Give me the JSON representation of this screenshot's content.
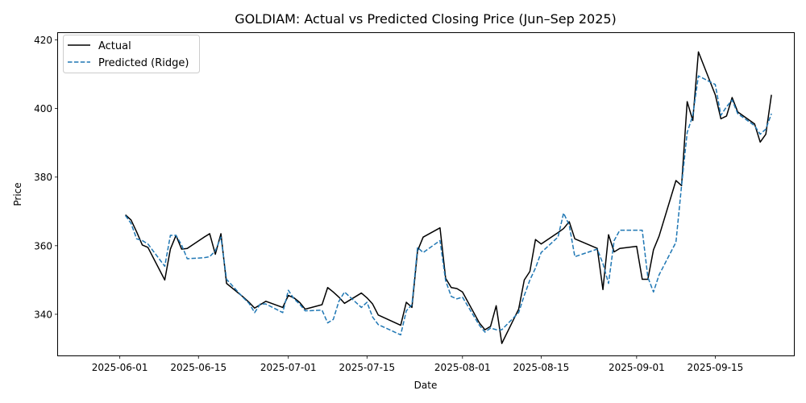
{
  "chart_data": {
    "type": "line",
    "title": "GOLDIAM: Actual vs Predicted Closing Price (Jun–Sep 2025)",
    "xlabel": "Date",
    "ylabel": "Price",
    "xlim": [
      "2025-05-21",
      "2025-09-29"
    ],
    "ylim": [
      328,
      422
    ],
    "x_ticks": [
      "2025-06-01",
      "2025-06-15",
      "2025-07-01",
      "2025-07-15",
      "2025-08-01",
      "2025-08-15",
      "2025-09-01",
      "2025-09-15"
    ],
    "y_ticks": [
      340,
      360,
      380,
      400,
      420
    ],
    "grid": false,
    "legend_position": "top-left",
    "series": [
      {
        "name": "Actual",
        "color": "#000000",
        "dash": "solid",
        "points": [
          [
            "2025-06-02",
            369.0
          ],
          [
            "2025-06-03",
            367.5
          ],
          [
            "2025-06-04",
            364.0
          ],
          [
            "2025-06-05",
            360.2
          ],
          [
            "2025-06-06",
            359.5
          ],
          [
            "2025-06-09",
            350.0
          ],
          [
            "2025-06-10",
            359.0
          ],
          [
            "2025-06-11",
            363.0
          ],
          [
            "2025-06-12",
            359.0
          ],
          [
            "2025-06-13",
            359.2
          ],
          [
            "2025-06-16",
            362.5
          ],
          [
            "2025-06-17",
            363.5
          ],
          [
            "2025-06-18",
            357.5
          ],
          [
            "2025-06-19",
            363.5
          ],
          [
            "2025-06-20",
            349.0
          ],
          [
            "2025-06-23",
            345.0
          ],
          [
            "2025-06-24",
            343.5
          ],
          [
            "2025-06-25",
            341.8
          ],
          [
            "2025-06-26",
            342.8
          ],
          [
            "2025-06-27",
            343.8
          ],
          [
            "2025-06-30",
            342.0
          ],
          [
            "2025-07-01",
            345.5
          ],
          [
            "2025-07-02",
            344.8
          ],
          [
            "2025-07-03",
            343.5
          ],
          [
            "2025-07-04",
            341.5
          ],
          [
            "2025-07-07",
            342.8
          ],
          [
            "2025-07-08",
            347.8
          ],
          [
            "2025-07-09",
            346.5
          ],
          [
            "2025-07-10",
            345.0
          ],
          [
            "2025-07-11",
            343.2
          ],
          [
            "2025-07-14",
            346.2
          ],
          [
            "2025-07-15",
            344.8
          ],
          [
            "2025-07-16",
            343.0
          ],
          [
            "2025-07-17",
            339.8
          ],
          [
            "2025-07-21",
            336.8
          ],
          [
            "2025-07-22",
            343.5
          ],
          [
            "2025-07-23",
            342.0
          ],
          [
            "2025-07-24",
            358.5
          ],
          [
            "2025-07-25",
            362.5
          ],
          [
            "2025-07-28",
            365.2
          ],
          [
            "2025-07-29",
            350.5
          ],
          [
            "2025-07-30",
            347.8
          ],
          [
            "2025-07-31",
            347.5
          ],
          [
            "2025-08-01",
            346.5
          ],
          [
            "2025-08-04",
            337.5
          ],
          [
            "2025-08-05",
            335.5
          ],
          [
            "2025-08-06",
            336.5
          ],
          [
            "2025-08-07",
            342.5
          ],
          [
            "2025-08-08",
            331.5
          ],
          [
            "2025-08-11",
            341.5
          ],
          [
            "2025-08-12",
            350.0
          ],
          [
            "2025-08-13",
            352.5
          ],
          [
            "2025-08-14",
            361.8
          ],
          [
            "2025-08-15",
            360.5
          ],
          [
            "2025-08-18",
            363.8
          ],
          [
            "2025-08-19",
            365.0
          ],
          [
            "2025-08-20",
            367.0
          ],
          [
            "2025-08-21",
            362.0
          ],
          [
            "2025-08-25",
            359.2
          ],
          [
            "2025-08-26",
            347.2
          ],
          [
            "2025-08-27",
            363.2
          ],
          [
            "2025-08-28",
            358.2
          ],
          [
            "2025-08-29",
            359.2
          ],
          [
            "2025-09-01",
            359.8
          ],
          [
            "2025-09-02",
            350.2
          ],
          [
            "2025-09-03",
            350.2
          ],
          [
            "2025-09-04",
            358.8
          ],
          [
            "2025-09-05",
            362.8
          ],
          [
            "2025-09-08",
            379.0
          ],
          [
            "2025-09-09",
            377.5
          ],
          [
            "2025-09-10",
            402.0
          ],
          [
            "2025-09-11",
            396.5
          ],
          [
            "2025-09-12",
            416.5
          ],
          [
            "2025-09-15",
            404.0
          ],
          [
            "2025-09-16",
            397.0
          ],
          [
            "2025-09-17",
            397.8
          ],
          [
            "2025-09-18",
            403.2
          ],
          [
            "2025-09-19",
            399.0
          ],
          [
            "2025-09-22",
            395.5
          ],
          [
            "2025-09-23",
            390.2
          ],
          [
            "2025-09-24",
            392.5
          ],
          [
            "2025-09-25",
            404.0
          ]
        ]
      },
      {
        "name": "Predicted (Ridge)",
        "color": "#1f77b4",
        "dash": "dashed",
        "points": [
          [
            "2025-06-02",
            368.8
          ],
          [
            "2025-06-03",
            366.5
          ],
          [
            "2025-06-04",
            362.0
          ],
          [
            "2025-06-05",
            361.5
          ],
          [
            "2025-06-06",
            360.5
          ],
          [
            "2025-06-09",
            354.0
          ],
          [
            "2025-06-10",
            363.0
          ],
          [
            "2025-06-11",
            363.0
          ],
          [
            "2025-06-12",
            360.2
          ],
          [
            "2025-06-13",
            356.2
          ],
          [
            "2025-06-16",
            356.5
          ],
          [
            "2025-06-17",
            356.8
          ],
          [
            "2025-06-18",
            358.5
          ],
          [
            "2025-06-19",
            362.5
          ],
          [
            "2025-06-20",
            350.2
          ],
          [
            "2025-06-23",
            344.8
          ],
          [
            "2025-06-24",
            343.2
          ],
          [
            "2025-06-25",
            340.5
          ],
          [
            "2025-06-26",
            343.0
          ],
          [
            "2025-06-27",
            343.0
          ],
          [
            "2025-06-30",
            340.5
          ],
          [
            "2025-07-01",
            347.0
          ],
          [
            "2025-07-02",
            344.5
          ],
          [
            "2025-07-03",
            343.0
          ],
          [
            "2025-07-04",
            341.0
          ],
          [
            "2025-07-07",
            341.2
          ],
          [
            "2025-07-08",
            337.5
          ],
          [
            "2025-07-09",
            338.5
          ],
          [
            "2025-07-10",
            343.8
          ],
          [
            "2025-07-11",
            346.5
          ],
          [
            "2025-07-14",
            342.0
          ],
          [
            "2025-07-15",
            343.5
          ],
          [
            "2025-07-16",
            339.2
          ],
          [
            "2025-07-17",
            337.0
          ],
          [
            "2025-07-21",
            334.0
          ],
          [
            "2025-07-22",
            341.0
          ],
          [
            "2025-07-23",
            342.8
          ],
          [
            "2025-07-24",
            359.5
          ],
          [
            "2025-07-25",
            358.0
          ],
          [
            "2025-07-28",
            361.5
          ],
          [
            "2025-07-29",
            349.8
          ],
          [
            "2025-07-30",
            345.2
          ],
          [
            "2025-07-31",
            344.5
          ],
          [
            "2025-08-01",
            345.0
          ],
          [
            "2025-08-04",
            336.8
          ],
          [
            "2025-08-05",
            334.8
          ],
          [
            "2025-08-06",
            336.0
          ],
          [
            "2025-08-07",
            335.5
          ],
          [
            "2025-08-08",
            335.5
          ],
          [
            "2025-08-11",
            340.5
          ],
          [
            "2025-08-12",
            345.5
          ],
          [
            "2025-08-13",
            350.0
          ],
          [
            "2025-08-14",
            353.5
          ],
          [
            "2025-08-15",
            358.0
          ],
          [
            "2025-08-18",
            362.5
          ],
          [
            "2025-08-19",
            369.5
          ],
          [
            "2025-08-20",
            366.0
          ],
          [
            "2025-08-21",
            356.8
          ],
          [
            "2025-08-25",
            359.0
          ],
          [
            "2025-08-26",
            354.8
          ],
          [
            "2025-08-27",
            349.0
          ],
          [
            "2025-08-28",
            361.5
          ],
          [
            "2025-08-29",
            364.5
          ],
          [
            "2025-09-01",
            364.5
          ],
          [
            "2025-09-02",
            364.5
          ],
          [
            "2025-09-03",
            350.8
          ],
          [
            "2025-09-04",
            346.5
          ],
          [
            "2025-09-05",
            351.5
          ],
          [
            "2025-09-08",
            361.0
          ],
          [
            "2025-09-09",
            377.5
          ],
          [
            "2025-09-10",
            393.0
          ],
          [
            "2025-09-11",
            398.0
          ],
          [
            "2025-09-12",
            409.5
          ],
          [
            "2025-09-15",
            407.0
          ],
          [
            "2025-09-16",
            398.0
          ],
          [
            "2025-09-17",
            400.5
          ],
          [
            "2025-09-18",
            402.5
          ],
          [
            "2025-09-19",
            398.5
          ],
          [
            "2025-09-22",
            395.0
          ],
          [
            "2025-09-23",
            392.5
          ],
          [
            "2025-09-24",
            394.0
          ],
          [
            "2025-09-25",
            398.5
          ]
        ]
      }
    ]
  }
}
